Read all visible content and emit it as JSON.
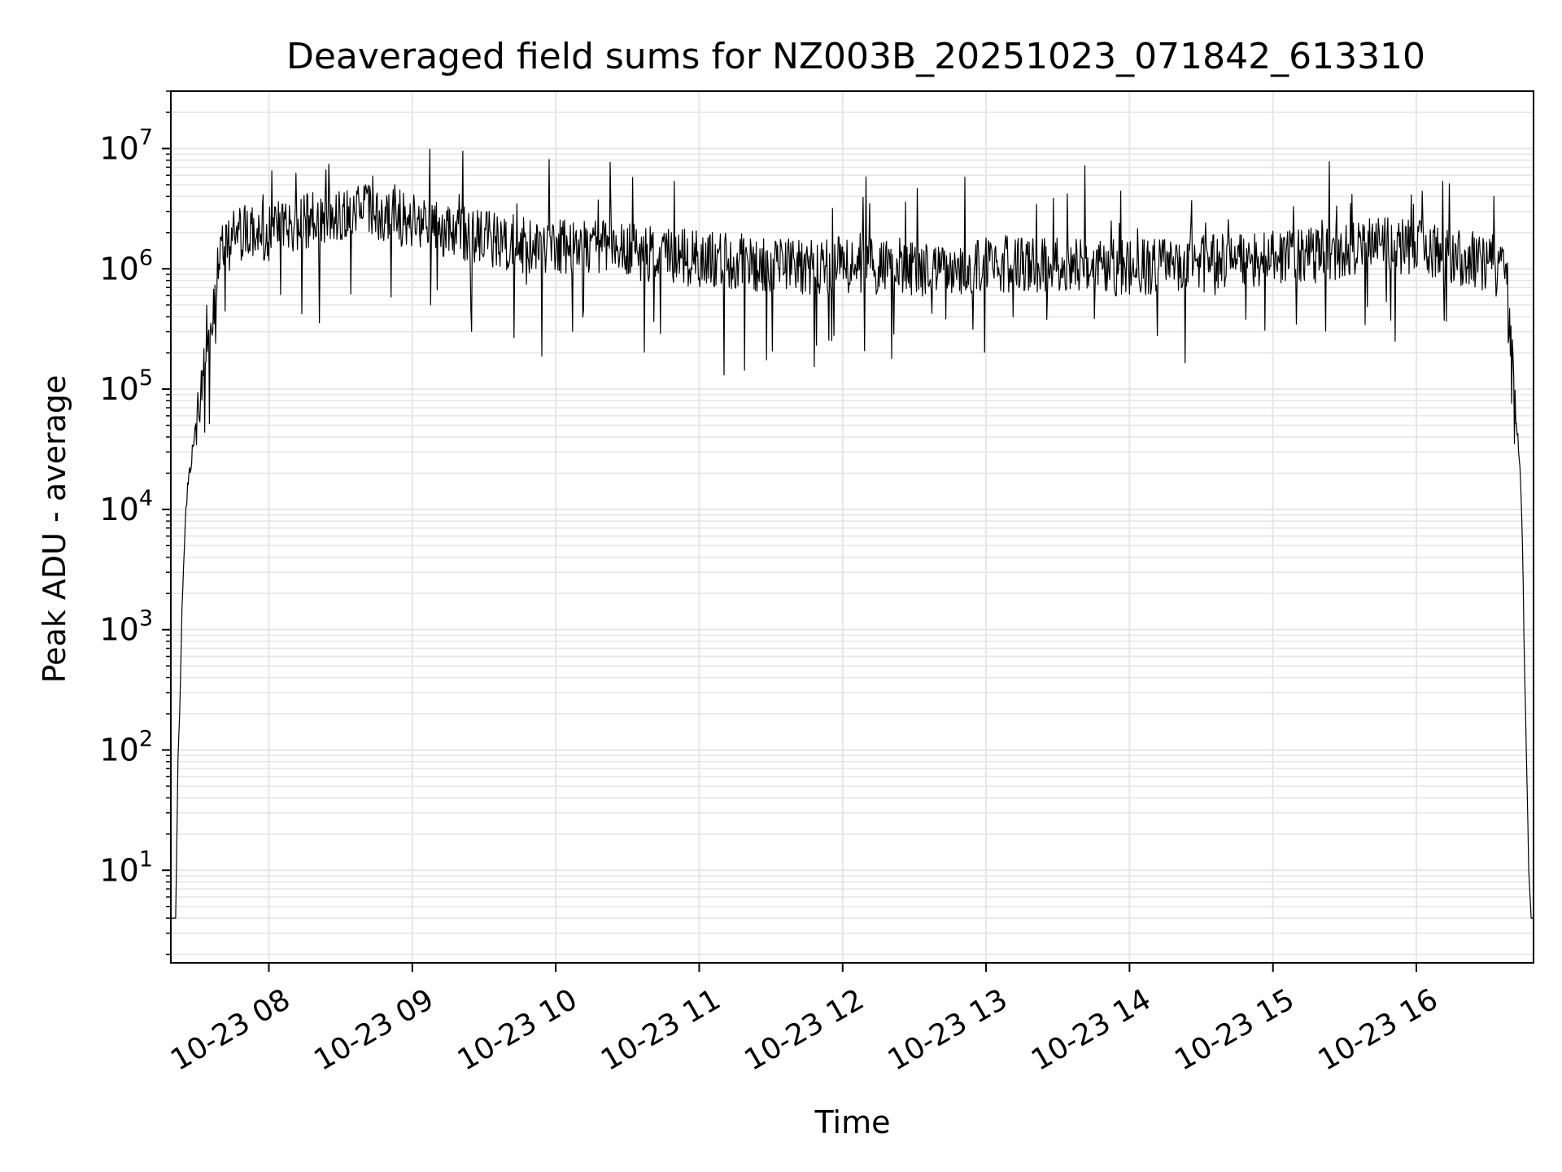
{
  "chart_data": {
    "type": "line",
    "title": "Deaveraged field sums for NZ003B_20251023_071842_613310",
    "xlabel": "Time",
    "ylabel": "Peak ADU - average",
    "xlim": [
      "2025-10-23 07:19",
      "2025-10-23 16:49"
    ],
    "ylim": [
      1.7,
      30000000
    ],
    "yscale": "log",
    "grid": true,
    "line_color": "#000000",
    "grid_color": "#e6e6e6",
    "x_ticks": [
      {
        "time": "2025-10-23 08:00",
        "label": "10-23 08"
      },
      {
        "time": "2025-10-23 09:00",
        "label": "10-23 09"
      },
      {
        "time": "2025-10-23 10:00",
        "label": "10-23 10"
      },
      {
        "time": "2025-10-23 11:00",
        "label": "10-23 11"
      },
      {
        "time": "2025-10-23 12:00",
        "label": "10-23 12"
      },
      {
        "time": "2025-10-23 13:00",
        "label": "10-23 13"
      },
      {
        "time": "2025-10-23 14:00",
        "label": "10-23 14"
      },
      {
        "time": "2025-10-23 15:00",
        "label": "10-23 15"
      },
      {
        "time": "2025-10-23 16:00",
        "label": "10-23 16"
      }
    ],
    "y_ticks": [
      {
        "value": 10,
        "base": "10",
        "exp": "1"
      },
      {
        "value": 100,
        "base": "10",
        "exp": "2"
      },
      {
        "value": 1000,
        "base": "10",
        "exp": "3"
      },
      {
        "value": 10000,
        "base": "10",
        "exp": "4"
      },
      {
        "value": 100000,
        "base": "10",
        "exp": "5"
      },
      {
        "value": 1000000,
        "base": "10",
        "exp": "6"
      },
      {
        "value": 10000000,
        "base": "10",
        "exp": "7"
      }
    ],
    "series": [
      {
        "x": [
          "2025-10-23 07:19",
          "2025-10-23 07:21",
          "2025-10-23 07:22",
          "2025-10-23 07:23",
          "2025-10-23 07:24",
          "2025-10-23 07:25",
          "2025-10-23 07:26",
          "2025-10-23 07:28",
          "2025-10-23 07:30",
          "2025-10-23 07:32",
          "2025-10-23 07:34",
          "2025-10-23 07:36",
          "2025-10-23 07:38",
          "2025-10-23 07:40",
          "2025-10-23 07:42",
          "2025-10-23 07:45",
          "2025-10-23 07:50",
          "2025-10-23 08:00",
          "2025-10-23 08:15",
          "2025-10-23 08:30",
          "2025-10-23 08:45",
          "2025-10-23 09:00",
          "2025-10-23 09:15",
          "2025-10-23 09:30",
          "2025-10-23 09:45",
          "2025-10-23 10:00",
          "2025-10-23 10:15",
          "2025-10-23 10:24",
          "2025-10-23 10:30",
          "2025-10-23 10:45",
          "2025-10-23 11:00",
          "2025-10-23 11:30",
          "2025-10-23 11:50",
          "2025-10-23 12:00",
          "2025-10-23 12:30",
          "2025-10-23 13:00",
          "2025-10-23 13:30",
          "2025-10-23 14:00",
          "2025-10-23 14:30",
          "2025-10-23 15:00",
          "2025-10-23 15:30",
          "2025-10-23 15:45",
          "2025-10-23 16:00",
          "2025-10-23 16:15",
          "2025-10-23 16:30",
          "2025-10-23 16:37",
          "2025-10-23 16:39",
          "2025-10-23 16:41",
          "2025-10-23 16:43",
          "2025-10-23 16:44",
          "2025-10-23 16:45",
          "2025-10-23 16:46",
          "2025-10-23 16:47",
          "2025-10-23 16:48",
          "2025-10-23 16:49"
        ],
        "y": [
          4,
          4,
          80,
          400,
          2500,
          8000,
          15000,
          30000,
          60000,
          100000,
          180000,
          300000,
          700000,
          1500000,
          1500000,
          1800000,
          2000000,
          2000000,
          2500000,
          2800000,
          3000000,
          2500000,
          2000000,
          1800000,
          1600000,
          1500000,
          1500000,
          1500000,
          1400000,
          1300000,
          1200000,
          1100000,
          1000000,
          1100000,
          1000000,
          1100000,
          1100000,
          1000000,
          1100000,
          1200000,
          1400000,
          1600000,
          1500000,
          1300000,
          1100000,
          900000,
          300000,
          100000,
          30000,
          10000,
          1000,
          100,
          10,
          4,
          4
        ]
      }
    ]
  }
}
